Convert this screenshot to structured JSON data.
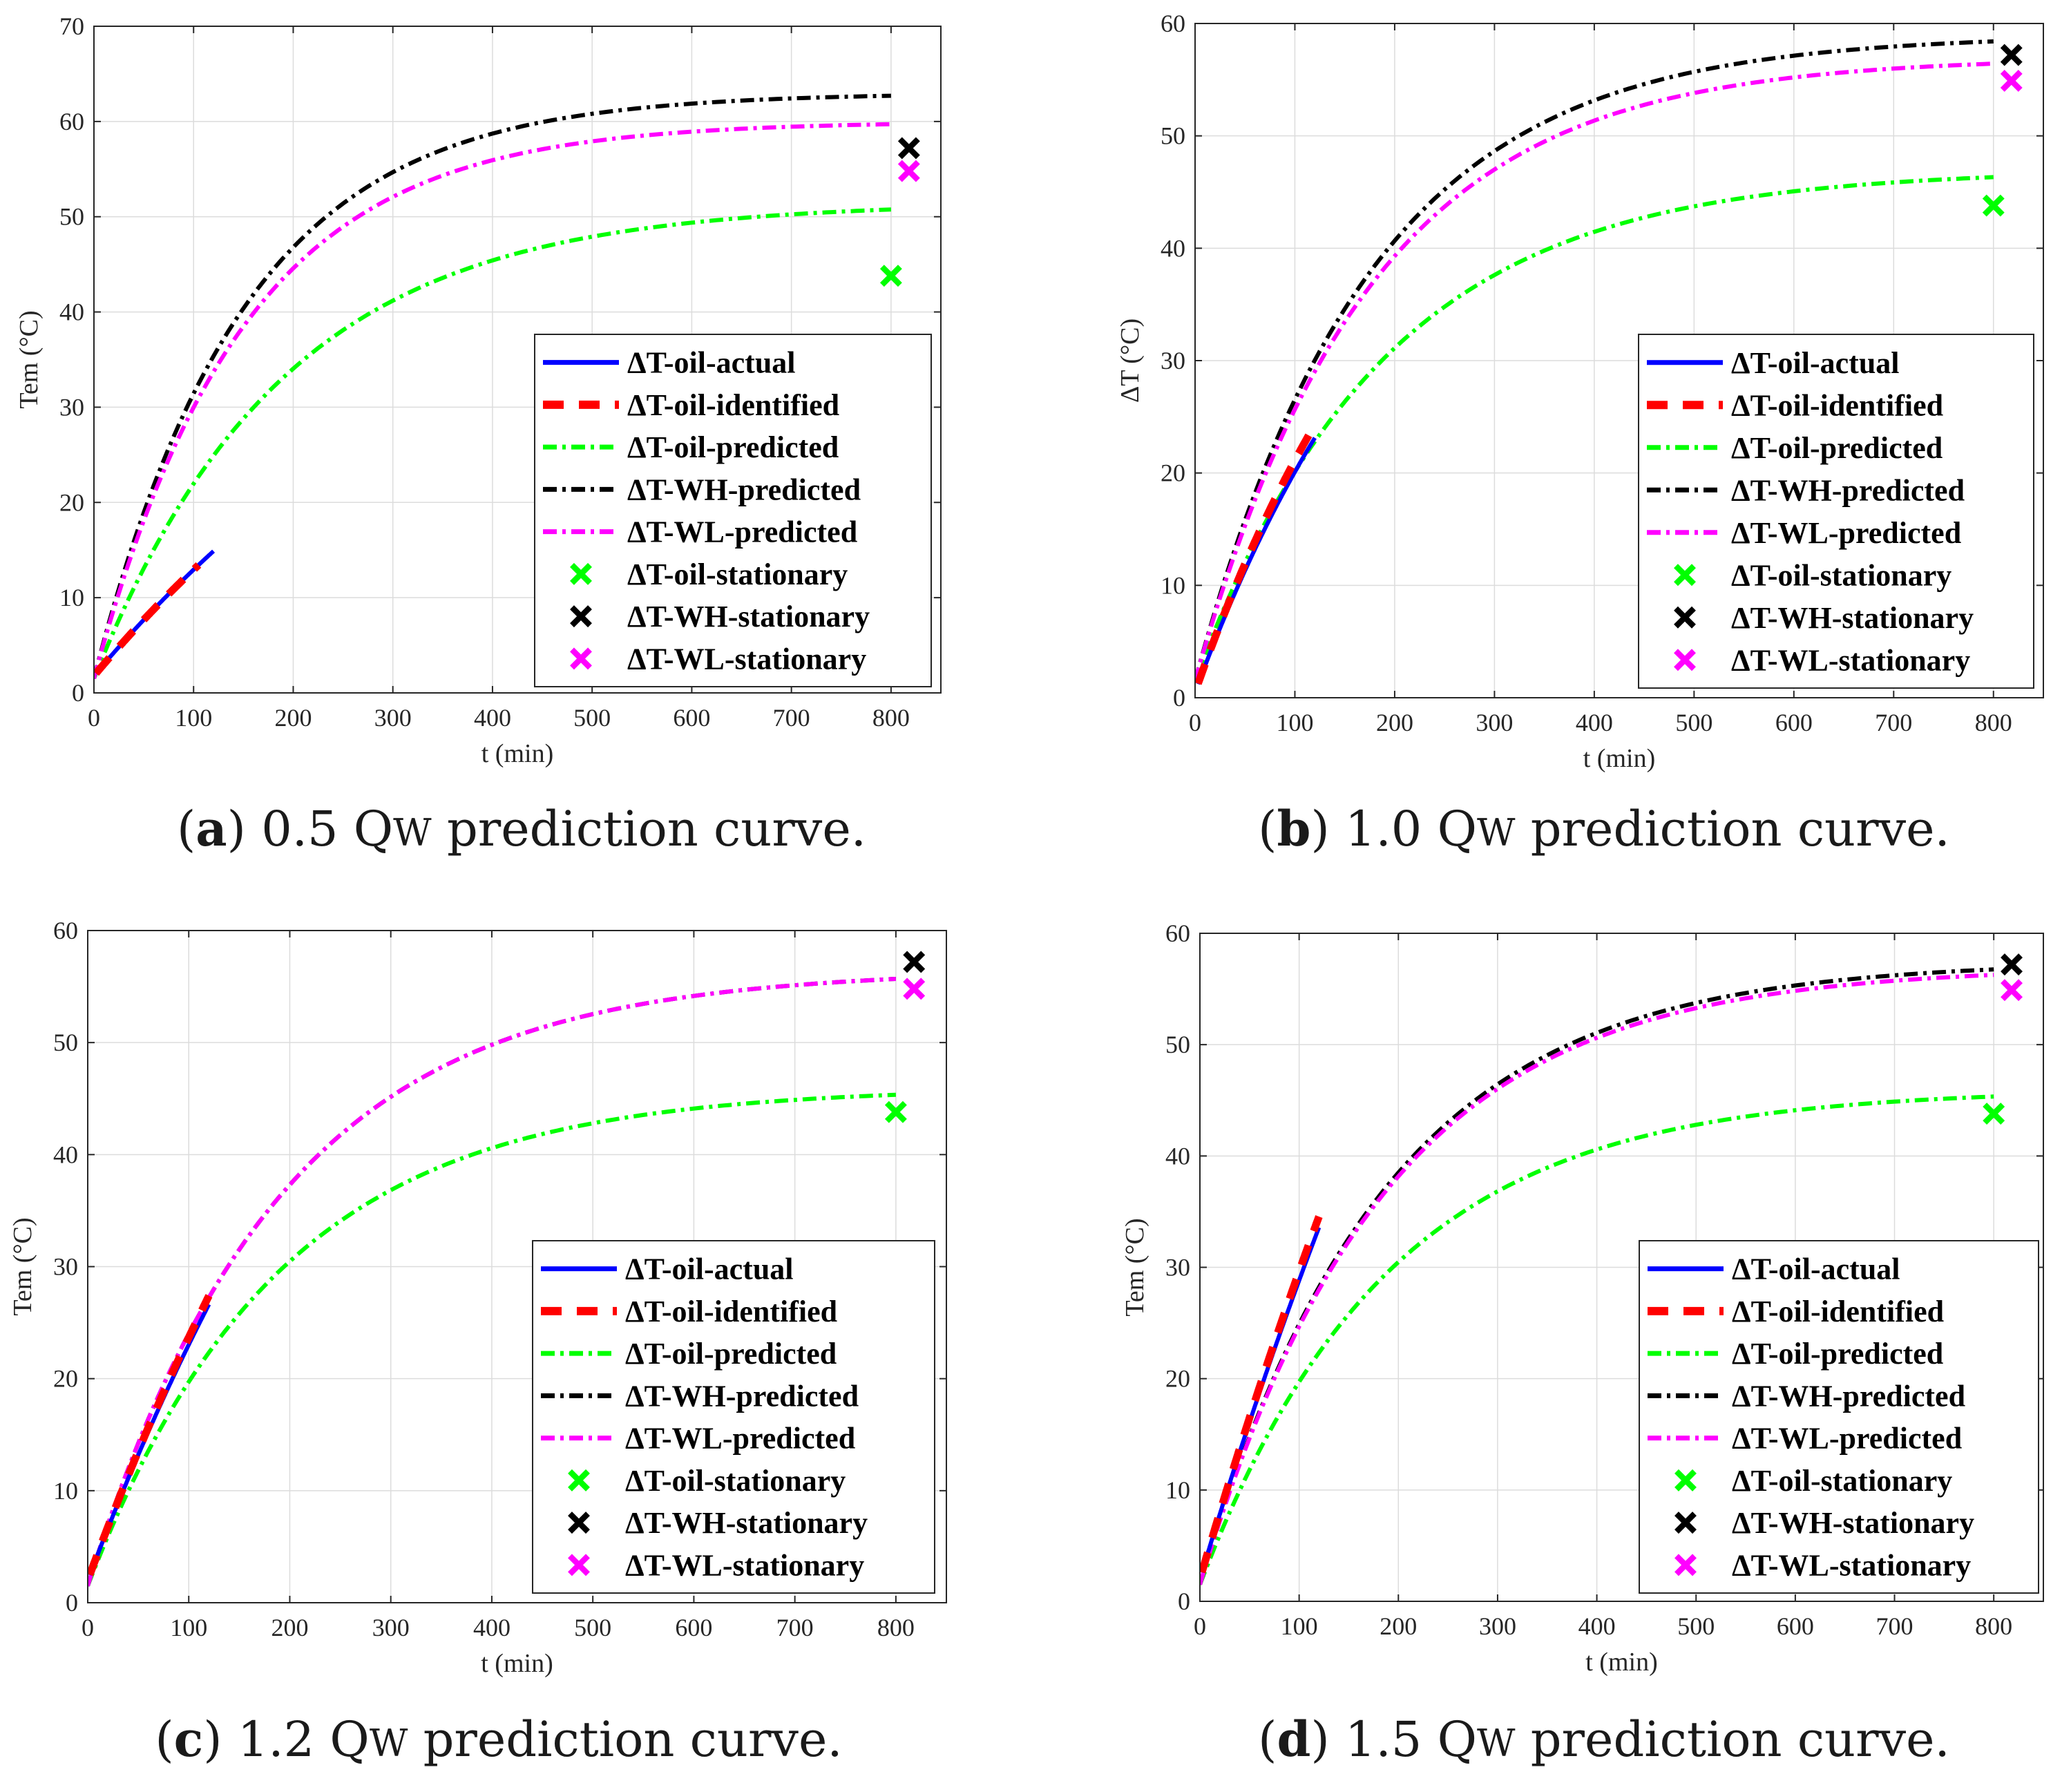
{
  "chart_data": [
    {
      "id": "a",
      "type": "line",
      "caption": {
        "letter": "a",
        "prefix": "0.5 Q",
        "sub": "W",
        "suffix": " prediction curve."
      },
      "xlabel": "t (min)",
      "ylabel": "Tem (°C)",
      "xlim": [
        0,
        850
      ],
      "ylim": [
        0,
        70
      ],
      "xticks": [
        0,
        100,
        200,
        300,
        400,
        500,
        600,
        700,
        800
      ],
      "yticks": [
        0,
        10,
        20,
        30,
        40,
        50,
        60,
        70
      ],
      "grid": true,
      "legend_position": "right-middle",
      "series": [
        {
          "name": "ΔT-oil-actual",
          "kind": "curve",
          "x0": 2,
          "x1": 120,
          "start": 1.8,
          "final": 57.7,
          "tau": 450
        },
        {
          "name": "ΔT-oil-identified",
          "kind": "curve",
          "x0": 2,
          "x1": 105,
          "start": 1.8,
          "final": 57.7,
          "tau": 450
        },
        {
          "name": "ΔT-oil-predicted",
          "kind": "curve",
          "x0": 0,
          "x1": 800,
          "start": 1.5,
          "final": 51.5,
          "tau": 190
        },
        {
          "name": "ΔT-WH-predicted",
          "kind": "curve",
          "x0": 0,
          "x1": 800,
          "start": 1.5,
          "final": 63,
          "tau": 150
        },
        {
          "name": "ΔT-WL-predicted",
          "kind": "curve",
          "x0": 0,
          "x1": 800,
          "start": 1.5,
          "final": 60,
          "tau": 150
        },
        {
          "name": "ΔT-oil-stationary",
          "kind": "point",
          "x": 800,
          "y": 43.8
        },
        {
          "name": "ΔT-WH-stationary",
          "kind": "point",
          "x": 818,
          "y": 57.2
        },
        {
          "name": "ΔT-WL-stationary",
          "kind": "point",
          "x": 818,
          "y": 54.8
        }
      ]
    },
    {
      "id": "b",
      "type": "line",
      "caption": {
        "letter": "b",
        "prefix": "1.0 Q",
        "sub": "W",
        "suffix": " prediction curve."
      },
      "xlabel": "t (min)",
      "ylabel": "ΔT (°C)",
      "xlim": [
        0,
        850
      ],
      "ylim": [
        0,
        60
      ],
      "xticks": [
        0,
        100,
        200,
        300,
        400,
        500,
        600,
        700,
        800
      ],
      "yticks": [
        0,
        10,
        20,
        30,
        40,
        50,
        60
      ],
      "grid": true,
      "legend_position": "right-middle",
      "series": [
        {
          "name": "ΔT-oil-actual",
          "kind": "curve",
          "x0": 3,
          "x1": 120,
          "start": 0.5,
          "final": 58,
          "tau": 240
        },
        {
          "name": "ΔT-oil-identified",
          "kind": "curve",
          "x0": 3,
          "x1": 115,
          "start": 0.5,
          "final": 60,
          "tau": 235
        },
        {
          "name": "ΔT-oil-predicted",
          "kind": "curve",
          "x0": 0,
          "x1": 800,
          "start": 1.5,
          "final": 47,
          "tau": 190
        },
        {
          "name": "ΔT-WH-predicted",
          "kind": "curve",
          "x0": 0,
          "x1": 800,
          "start": 1.5,
          "final": 59,
          "tau": 175
        },
        {
          "name": "ΔT-WL-predicted",
          "kind": "curve",
          "x0": 0,
          "x1": 800,
          "start": 1.5,
          "final": 57,
          "tau": 175
        },
        {
          "name": "ΔT-oil-stationary",
          "kind": "point",
          "x": 800,
          "y": 43.8
        },
        {
          "name": "ΔT-WH-stationary",
          "kind": "point",
          "x": 818,
          "y": 57.2
        },
        {
          "name": "ΔT-WL-stationary",
          "kind": "point",
          "x": 818,
          "y": 54.9
        }
      ]
    },
    {
      "id": "c",
      "type": "line",
      "caption": {
        "letter": "c",
        "prefix": "1.2 Q",
        "sub": "W",
        "suffix": " prediction curve."
      },
      "xlabel": "t (min)",
      "ylabel": "Tem (°C)",
      "xlim": [
        0,
        850
      ],
      "ylim": [
        0,
        60
      ],
      "xticks": [
        0,
        100,
        200,
        300,
        400,
        500,
        600,
        700,
        800
      ],
      "yticks": [
        0,
        10,
        20,
        30,
        40,
        50,
        60
      ],
      "grid": true,
      "legend_position": "right-middle",
      "series": [
        {
          "name": "ΔT-oil-actual",
          "kind": "curve",
          "x0": 2,
          "x1": 120,
          "start": 2,
          "final": 95,
          "tau": 390
        },
        {
          "name": "ΔT-oil-identified",
          "kind": "curve",
          "x0": 2,
          "x1": 120,
          "start": 2,
          "final": 100,
          "tau": 400
        },
        {
          "name": "ΔT-oil-predicted",
          "kind": "curve",
          "x0": 0,
          "x1": 800,
          "start": 1.5,
          "final": 46,
          "tau": 190
        },
        {
          "name": "ΔT-WH-predicted",
          "kind": "curve",
          "x0": 0,
          "x1": 800,
          "start": 1.5,
          "final": 56.5,
          "tau": 190
        },
        {
          "name": "ΔT-WL-predicted",
          "kind": "curve",
          "x0": 0,
          "x1": 800,
          "start": 1.5,
          "final": 56.5,
          "tau": 190
        },
        {
          "name": "ΔT-oil-stationary",
          "kind": "point",
          "x": 800,
          "y": 43.8
        },
        {
          "name": "ΔT-WH-stationary",
          "kind": "point",
          "x": 818,
          "y": 57.2
        },
        {
          "name": "ΔT-WL-stationary",
          "kind": "point",
          "x": 818,
          "y": 54.8
        }
      ]
    },
    {
      "id": "d",
      "type": "line",
      "caption": {
        "letter": "d",
        "prefix": "1.5 Q",
        "sub": "W",
        "suffix": " prediction curve."
      },
      "xlabel": "t (min)",
      "ylabel": "Tem (°C)",
      "xlim": [
        0,
        850
      ],
      "ylim": [
        0,
        60
      ],
      "xticks": [
        0,
        100,
        200,
        300,
        400,
        500,
        600,
        700,
        800
      ],
      "yticks": [
        0,
        10,
        20,
        30,
        40,
        50,
        60
      ],
      "grid": true,
      "legend_position": "right-middle",
      "series": [
        {
          "name": "ΔT-oil-actual",
          "kind": "curve",
          "x0": 2,
          "x1": 120,
          "start": 2,
          "final": 150,
          "tau": 500
        },
        {
          "name": "ΔT-oil-identified",
          "kind": "curve",
          "x0": 2,
          "x1": 120,
          "start": 2,
          "final": 160,
          "tau": 520
        },
        {
          "name": "ΔT-oil-predicted",
          "kind": "curve",
          "x0": 0,
          "x1": 800,
          "start": 1.5,
          "final": 46,
          "tau": 190
        },
        {
          "name": "ΔT-WH-predicted",
          "kind": "curve",
          "x0": 0,
          "x1": 800,
          "start": 1.5,
          "final": 57.5,
          "tau": 185
        },
        {
          "name": "ΔT-WL-predicted",
          "kind": "curve",
          "x0": 0,
          "x1": 800,
          "start": 1.5,
          "final": 57,
          "tau": 185
        },
        {
          "name": "ΔT-oil-stationary",
          "kind": "point",
          "x": 800,
          "y": 43.8
        },
        {
          "name": "ΔT-WH-stationary",
          "kind": "point",
          "x": 818,
          "y": 57.2
        },
        {
          "name": "ΔT-WL-stationary",
          "kind": "point",
          "x": 818,
          "y": 54.9
        }
      ]
    }
  ],
  "series_colors": {
    "ΔT-oil-actual": "#0000ff",
    "ΔT-oil-identified": "#ff0000",
    "ΔT-oil-predicted": "#00ff00",
    "ΔT-WH-predicted": "#000000",
    "ΔT-WL-predicted": "#ff00ff",
    "ΔT-oil-stationary": "#00ff00",
    "ΔT-WH-stationary": "#000000",
    "ΔT-WL-stationary": "#ff00ff"
  }
}
